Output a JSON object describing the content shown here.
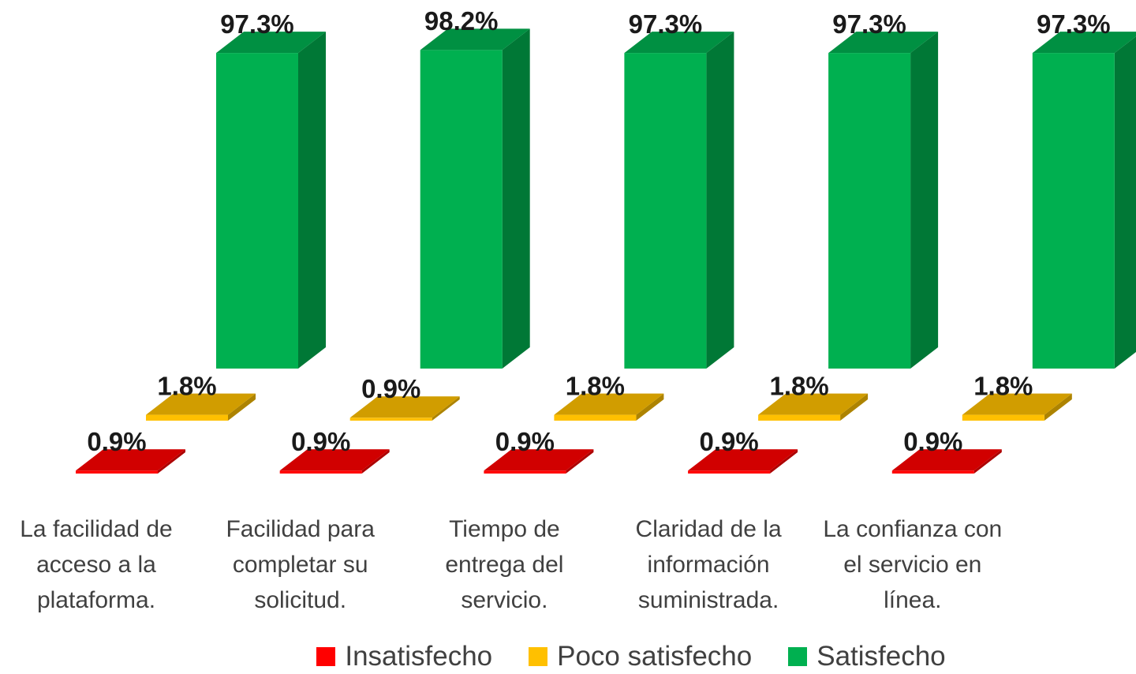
{
  "chart_data": {
    "type": "bar3d",
    "categories": [
      "La facilidad de acceso a la plataforma.",
      "Facilidad para completar su solicitud.",
      "Tiempo de entrega del servicio.",
      "Claridad de la información suministrada.",
      "La confianza con el servicio en línea."
    ],
    "series": [
      {
        "name": "Insatisfecho",
        "color": "#ff0000",
        "values": [
          0.9,
          0.9,
          0.9,
          0.9,
          0.9
        ],
        "value_labels": [
          "0.9%",
          "0.9%",
          "0.9%",
          "0.9%",
          "0.9%"
        ]
      },
      {
        "name": "Poco satisfecho",
        "color": "#ffc000",
        "values": [
          1.8,
          0.9,
          1.8,
          1.8,
          1.8
        ],
        "value_labels": [
          "1.8%",
          "0.9%",
          "1.8%",
          "1.8%",
          "1.8%"
        ]
      },
      {
        "name": "Satisfecho",
        "color": "#00b050",
        "values": [
          97.3,
          98.2,
          97.3,
          97.3,
          97.3
        ],
        "value_labels": [
          "97.3%",
          "98.2%",
          "97.3%",
          "97.3%",
          "97.3%"
        ]
      }
    ],
    "legend": "bottom"
  }
}
